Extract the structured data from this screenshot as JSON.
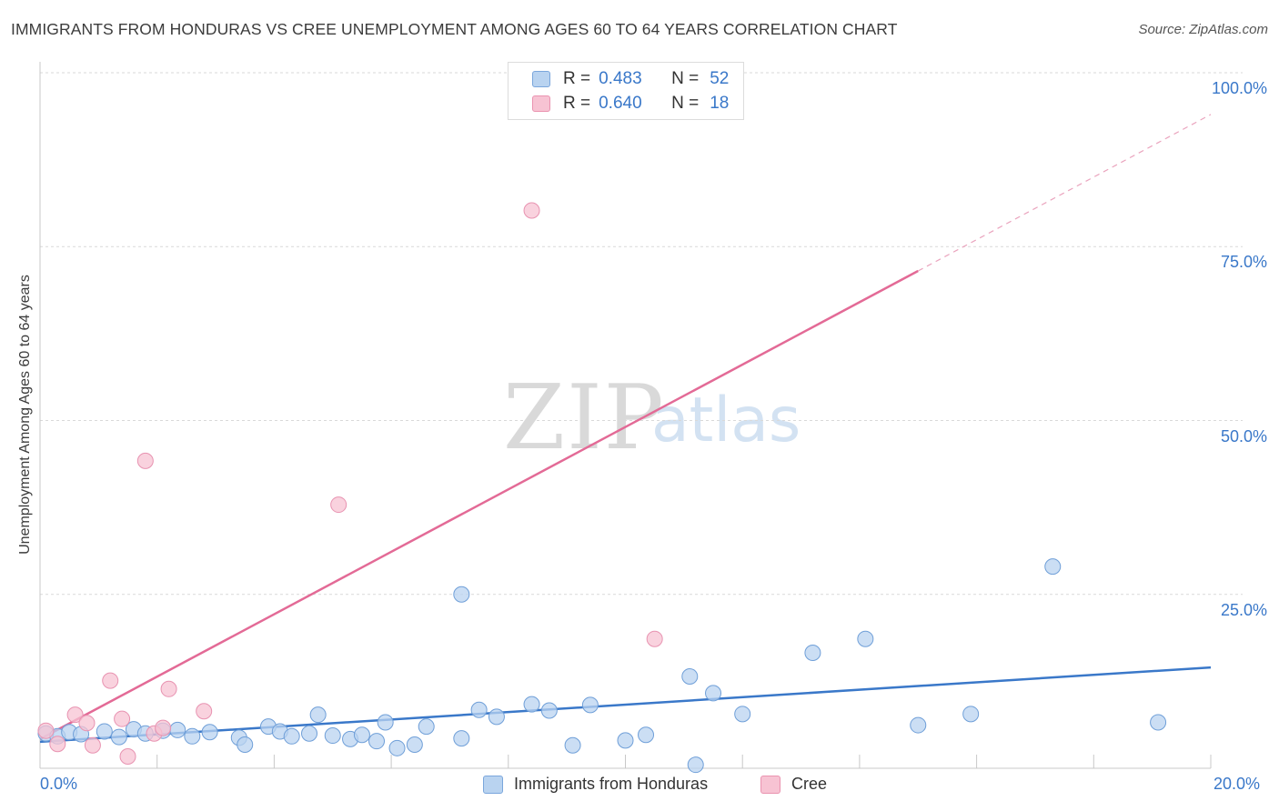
{
  "title": "IMMIGRANTS FROM HONDURAS VS CREE UNEMPLOYMENT AMONG AGES 60 TO 64 YEARS CORRELATION CHART",
  "source": "Source: ZipAtlas.com",
  "watermark": {
    "zip": "ZIP",
    "atlas": "atlas"
  },
  "legend": {
    "r_label": "R =",
    "n_label": "N =",
    "rows": [
      {
        "r": "0.483",
        "n": "52"
      },
      {
        "r": "0.640",
        "n": "18"
      }
    ]
  },
  "chart_data": {
    "type": "scatter",
    "title": "IMMIGRANTS FROM HONDURAS VS CREE UNEMPLOYMENT AMONG AGES 60 TO 64 YEARS CORRELATION CHART",
    "xlabel": "",
    "ylabel": "Unemployment Among Ages 60 to 64 years",
    "xlim": [
      0,
      20
    ],
    "ylim": [
      0,
      100
    ],
    "x_tick_labels": [
      "0.0%",
      "20.0%"
    ],
    "y_ticks": [
      25,
      50,
      75,
      100
    ],
    "y_tick_labels": [
      "25.0%",
      "50.0%",
      "75.0%",
      "100.0%"
    ],
    "colors": {
      "blue": "#3a78c9",
      "blue_fill": "#b9d3f0",
      "pink": "#e36a96",
      "pink_fill": "#f7c3d3",
      "grid": "#d9d9d9"
    },
    "series": [
      {
        "name": "Immigrants from Honduras",
        "r": 0.483,
        "n": 52,
        "trend": {
          "x0": 0,
          "y0": 3.8,
          "x1": 20,
          "y1": 14.5
        },
        "points": [
          [
            0.1,
            5.0
          ],
          [
            0.3,
            4.6
          ],
          [
            0.5,
            5.2
          ],
          [
            0.7,
            4.9
          ],
          [
            1.1,
            5.3
          ],
          [
            1.35,
            4.5
          ],
          [
            1.6,
            5.6
          ],
          [
            1.8,
            5.0
          ],
          [
            2.1,
            5.4
          ],
          [
            2.35,
            5.5
          ],
          [
            2.6,
            4.6
          ],
          [
            2.9,
            5.2
          ],
          [
            3.4,
            4.4
          ],
          [
            3.5,
            3.4
          ],
          [
            3.9,
            6.0
          ],
          [
            4.1,
            5.3
          ],
          [
            4.3,
            4.6
          ],
          [
            4.6,
            5.0
          ],
          [
            4.75,
            7.7
          ],
          [
            5.0,
            4.7
          ],
          [
            5.3,
            4.2
          ],
          [
            5.5,
            4.8
          ],
          [
            5.75,
            3.9
          ],
          [
            5.9,
            6.6
          ],
          [
            6.1,
            2.9
          ],
          [
            6.4,
            3.4
          ],
          [
            6.6,
            6.0
          ],
          [
            7.2,
            4.3
          ],
          [
            7.2,
            25.0
          ],
          [
            7.5,
            8.4
          ],
          [
            7.8,
            7.4
          ],
          [
            8.4,
            9.2
          ],
          [
            8.7,
            8.3
          ],
          [
            9.1,
            3.3
          ],
          [
            9.4,
            9.1
          ],
          [
            10.0,
            4.0
          ],
          [
            10.35,
            4.8
          ],
          [
            11.1,
            13.2
          ],
          [
            11.2,
            0.5
          ],
          [
            11.5,
            10.8
          ],
          [
            12.0,
            7.8
          ],
          [
            13.2,
            16.6
          ],
          [
            14.1,
            18.6
          ],
          [
            15.0,
            6.2
          ],
          [
            15.9,
            7.8
          ],
          [
            17.3,
            29.0
          ],
          [
            19.1,
            6.6
          ]
        ]
      },
      {
        "name": "Cree",
        "r": 0.64,
        "n": 18,
        "trend": {
          "x0": 0,
          "y0": 4.2,
          "x1": 15,
          "y1": 71.5,
          "x_ext_end": 20,
          "y_ext_end": 94
        },
        "points": [
          [
            0.1,
            5.4
          ],
          [
            0.3,
            3.5
          ],
          [
            0.6,
            7.7
          ],
          [
            0.8,
            6.5
          ],
          [
            0.9,
            3.3
          ],
          [
            1.2,
            12.6
          ],
          [
            1.4,
            7.1
          ],
          [
            1.5,
            1.7
          ],
          [
            1.8,
            44.2
          ],
          [
            1.95,
            5.0
          ],
          [
            2.1,
            5.8
          ],
          [
            2.2,
            11.4
          ],
          [
            2.8,
            8.2
          ],
          [
            5.1,
            37.9
          ],
          [
            8.4,
            80.2
          ],
          [
            10.5,
            18.6
          ]
        ]
      }
    ]
  },
  "bottom_legend": [
    {
      "label": "Immigrants from Honduras"
    },
    {
      "label": "Cree"
    }
  ]
}
